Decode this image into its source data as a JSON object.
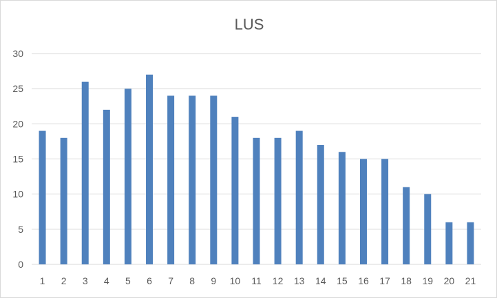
{
  "chart_data": {
    "type": "bar",
    "title": "LUS",
    "xlabel": "",
    "ylabel": "",
    "categories": [
      "1",
      "2",
      "3",
      "4",
      "5",
      "6",
      "7",
      "8",
      "9",
      "10",
      "11",
      "12",
      "13",
      "14",
      "15",
      "16",
      "17",
      "18",
      "19",
      "20",
      "21"
    ],
    "values": [
      19,
      18,
      26,
      22,
      25,
      27,
      24,
      24,
      24,
      21,
      18,
      18,
      19,
      17,
      16,
      15,
      15,
      11,
      10,
      6,
      6
    ],
    "ylim": [
      0,
      30
    ],
    "yticks": [
      "0",
      "5",
      "10",
      "15",
      "20",
      "25",
      "30"
    ],
    "grid": true,
    "legend": "none",
    "colors": {
      "bar": "#4f81bd",
      "grid": "#d9d9d9",
      "text": "#595959"
    }
  }
}
